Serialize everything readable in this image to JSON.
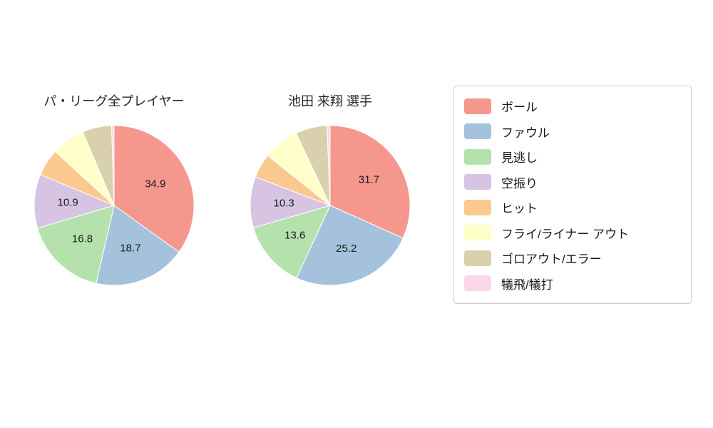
{
  "chart_data": [
    {
      "type": "pie",
      "title": "パ・リーグ全プレイヤー",
      "categories": [
        "ボール",
        "ファウル",
        "見逃し",
        "空振り",
        "ヒット",
        "フライ/ライナー アウト",
        "ゴロアウト/エラー",
        "犠飛/犠打"
      ],
      "values": [
        34.9,
        18.7,
        16.8,
        10.9,
        5.5,
        6.8,
        5.9,
        0.5
      ],
      "value_labels": [
        "34.9",
        "18.7",
        "16.8",
        "10.9",
        "",
        "",
        "",
        ""
      ],
      "start_angle_deg": -90,
      "direction": "clockwise",
      "legend_position": "right-outside"
    },
    {
      "type": "pie",
      "title": "池田 来翔 選手",
      "categories": [
        "ボール",
        "ファウル",
        "見逃し",
        "空振り",
        "ヒット",
        "フライ/ライナー アウト",
        "ゴロアウト/エラー",
        "犠飛/犠打"
      ],
      "values": [
        31.7,
        25.2,
        13.6,
        10.3,
        4.9,
        7.3,
        6.4,
        0.6
      ],
      "value_labels": [
        "31.7",
        "25.2",
        "13.6",
        "10.3",
        "",
        "",
        "",
        ""
      ],
      "start_angle_deg": -90,
      "direction": "clockwise",
      "legend_position": "right-outside"
    }
  ],
  "legend": {
    "entries": [
      {
        "label": "ボール",
        "color": "#f5978d"
      },
      {
        "label": "ファウル",
        "color": "#a5c2dc"
      },
      {
        "label": "見逃し",
        "color": "#b5e1ad"
      },
      {
        "label": "空振り",
        "color": "#d6c4e2"
      },
      {
        "label": "ヒット",
        "color": "#fac98e"
      },
      {
        "label": "フライ/ライナー アウト",
        "color": "#ffffc9"
      },
      {
        "label": "ゴロアウト/エラー",
        "color": "#d9d0ad"
      },
      {
        "label": "犠飛/犠打",
        "color": "#fbd6e9"
      }
    ]
  }
}
